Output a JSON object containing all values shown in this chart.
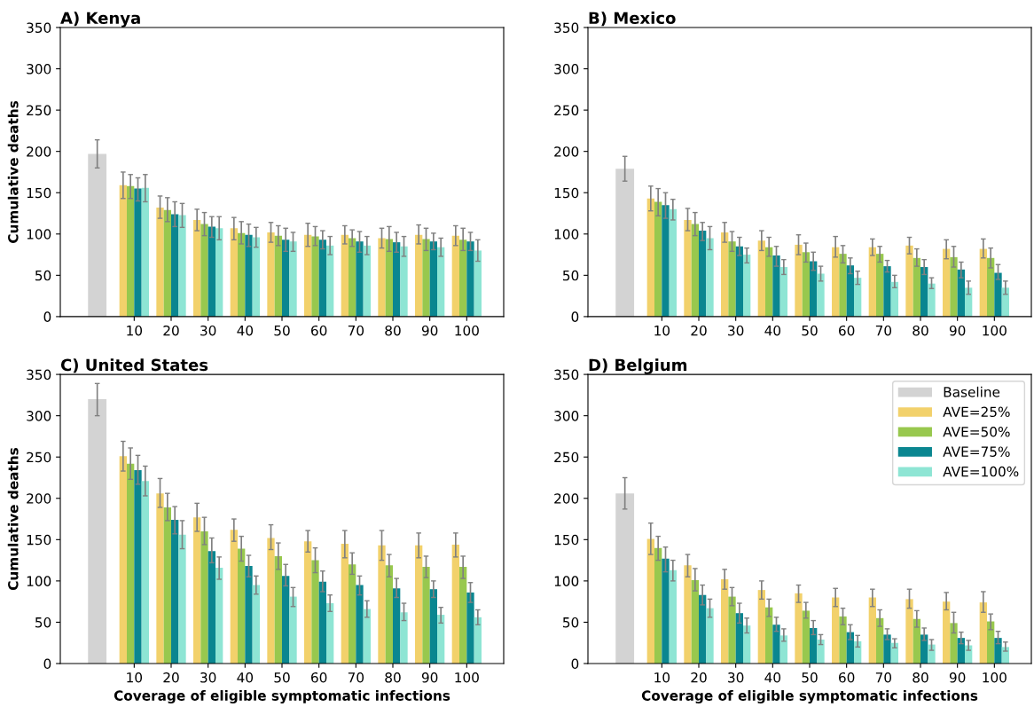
{
  "chart_data": [
    {
      "type": "bar",
      "title": "A) Kenya",
      "ylabel": "Cumulative deaths",
      "categories": [
        null,
        "10",
        "20",
        "30",
        "40",
        "50",
        "60",
        "70",
        "80",
        "90",
        "100"
      ],
      "ylim": [
        0,
        350
      ],
      "yticks": [
        0,
        50,
        100,
        150,
        200,
        250,
        300,
        350
      ],
      "grid": false,
      "legend": false,
      "tick_labels": "xy",
      "series": [
        {
          "color": "#d3d3d3",
          "values": [
            197,
            null,
            null,
            null,
            null,
            null,
            null,
            null,
            null,
            null,
            null
          ],
          "errors": [
            [
              180,
              214
            ],
            null,
            null,
            null,
            null,
            null,
            null,
            null,
            null,
            null,
            null
          ]
        },
        {
          "color": "#f2d16b",
          "values": [
            null,
            159,
            132,
            117,
            107,
            102,
            99,
            99,
            95,
            99,
            98
          ],
          "errors": [
            null,
            [
              143,
              175
            ],
            [
              119,
              146
            ],
            [
              104,
              130
            ],
            [
              93,
              120
            ],
            [
              90,
              114
            ],
            [
              85,
              113
            ],
            [
              88,
              110
            ],
            [
              83,
              107
            ],
            [
              88,
              111
            ],
            [
              86,
              110
            ]
          ]
        },
        {
          "color": "#98c84e",
          "values": [
            null,
            158,
            129,
            112,
            101,
            98,
            97,
            95,
            94,
            94,
            93
          ],
          "errors": [
            null,
            [
              143,
              172
            ],
            [
              115,
              144
            ],
            [
              98,
              126
            ],
            [
              88,
              115
            ],
            [
              86,
              110
            ],
            [
              86,
              109
            ],
            [
              85,
              105
            ],
            [
              79,
              109
            ],
            [
              80,
              107
            ],
            [
              80,
              107
            ]
          ]
        },
        {
          "color": "#0a8690",
          "values": [
            null,
            155,
            124,
            109,
            99,
            93,
            93,
            91,
            90,
            91,
            91
          ],
          "errors": [
            null,
            [
              140,
              168
            ],
            [
              109,
              139
            ],
            [
              96,
              121
            ],
            [
              85,
              112
            ],
            [
              79,
              107
            ],
            [
              82,
              104
            ],
            [
              78,
              103
            ],
            [
              78,
              102
            ],
            [
              81,
              101
            ],
            [
              80,
              102
            ]
          ]
        },
        {
          "color": "#8ee5d4",
          "values": [
            null,
            156,
            123,
            107,
            96,
            91,
            86,
            86,
            85,
            84,
            80
          ],
          "errors": [
            null,
            [
              139,
              172
            ],
            [
              108,
              137
            ],
            [
              93,
              121
            ],
            [
              84,
              108
            ],
            [
              79,
              102
            ],
            [
              75,
              97
            ],
            [
              75,
              97
            ],
            [
              73,
              97
            ],
            [
              73,
              95
            ],
            [
              67,
              93
            ]
          ]
        }
      ]
    },
    {
      "type": "bar",
      "title": "B) Mexico",
      "categories": [
        null,
        "10",
        "20",
        "30",
        "40",
        "50",
        "60",
        "70",
        "80",
        "90",
        "100"
      ],
      "ylim": [
        0,
        350
      ],
      "yticks": [
        0,
        50,
        100,
        150,
        200,
        250,
        300,
        350
      ],
      "grid": false,
      "legend": false,
      "tick_labels": "xy",
      "series": [
        {
          "color": "#d3d3d3",
          "values": [
            179,
            null,
            null,
            null,
            null,
            null,
            null,
            null,
            null,
            null,
            null
          ],
          "errors": [
            [
              164,
              194
            ],
            null,
            null,
            null,
            null,
            null,
            null,
            null,
            null,
            null,
            null
          ]
        },
        {
          "color": "#f2d16b",
          "values": [
            null,
            143,
            117,
            102,
            92,
            87,
            84,
            84,
            86,
            82,
            82
          ],
          "errors": [
            null,
            [
              128,
              158
            ],
            [
              104,
              131
            ],
            [
              90,
              114
            ],
            [
              80,
              104
            ],
            [
              75,
              99
            ],
            [
              72,
              97
            ],
            [
              74,
              94
            ],
            [
              76,
              96
            ],
            [
              70,
              93
            ],
            [
              71,
              94
            ]
          ]
        },
        {
          "color": "#98c84e",
          "values": [
            null,
            139,
            112,
            91,
            84,
            78,
            76,
            76,
            71,
            72,
            71
          ],
          "errors": [
            null,
            [
              122,
              155
            ],
            [
              98,
              126
            ],
            [
              79,
              103
            ],
            [
              73,
              96
            ],
            [
              66,
              89
            ],
            [
              65,
              86
            ],
            [
              66,
              85
            ],
            [
              61,
              82
            ],
            [
              60,
              85
            ],
            [
              59,
              83
            ]
          ]
        },
        {
          "color": "#0a8690",
          "values": [
            null,
            135,
            104,
            85,
            74,
            67,
            62,
            61,
            60,
            57,
            53
          ],
          "errors": [
            null,
            [
              119,
              150
            ],
            [
              92,
              114
            ],
            [
              74,
              96
            ],
            [
              61,
              85
            ],
            [
              56,
              78
            ],
            [
              52,
              71
            ],
            [
              54,
              68
            ],
            [
              51,
              69
            ],
            [
              47,
              66
            ],
            [
              45,
              63
            ]
          ]
        },
        {
          "color": "#8ee5d4",
          "values": [
            null,
            130,
            95,
            75,
            60,
            52,
            47,
            42,
            40,
            35,
            35
          ],
          "errors": [
            null,
            [
              117,
              142
            ],
            [
              81,
              109
            ],
            [
              65,
              83
            ],
            [
              51,
              69
            ],
            [
              43,
              61
            ],
            [
              39,
              55
            ],
            [
              35,
              50
            ],
            [
              34,
              47
            ],
            [
              27,
              43
            ],
            [
              27,
              43
            ]
          ]
        }
      ]
    },
    {
      "type": "bar",
      "title": "C) United States",
      "ylabel": "Cumulative deaths",
      "xlabel": "Coverage of eligible symptomatic infections",
      "categories": [
        null,
        "10",
        "20",
        "30",
        "40",
        "50",
        "60",
        "70",
        "80",
        "90",
        "100"
      ],
      "ylim": [
        0,
        350
      ],
      "yticks": [
        0,
        50,
        100,
        150,
        200,
        250,
        300,
        350
      ],
      "grid": false,
      "legend": false,
      "tick_labels": "xy",
      "series": [
        {
          "color": "#d3d3d3",
          "values": [
            320,
            null,
            null,
            null,
            null,
            null,
            null,
            null,
            null,
            null,
            null
          ],
          "errors": [
            [
              300,
              339
            ],
            null,
            null,
            null,
            null,
            null,
            null,
            null,
            null,
            null,
            null
          ]
        },
        {
          "color": "#f2d16b",
          "values": [
            null,
            251,
            206,
            177,
            162,
            152,
            148,
            145,
            143,
            143,
            144
          ],
          "errors": [
            null,
            [
              233,
              269
            ],
            [
              189,
              224
            ],
            [
              160,
              194
            ],
            [
              148,
              175
            ],
            [
              138,
              168
            ],
            [
              135,
              161
            ],
            [
              128,
              161
            ],
            [
              125,
              161
            ],
            [
              128,
              158
            ],
            [
              129,
              158
            ]
          ]
        },
        {
          "color": "#98c84e",
          "values": [
            null,
            242,
            189,
            160,
            139,
            130,
            125,
            120,
            119,
            117,
            117
          ],
          "errors": [
            null,
            [
              223,
              261
            ],
            [
              173,
              206
            ],
            [
              144,
              177
            ],
            [
              124,
              154
            ],
            [
              114,
              146
            ],
            [
              110,
              140
            ],
            [
              108,
              134
            ],
            [
              105,
              132
            ],
            [
              104,
              130
            ],
            [
              103,
              130
            ]
          ]
        },
        {
          "color": "#0a8690",
          "values": [
            null,
            234,
            174,
            136,
            118,
            106,
            99,
            95,
            91,
            90,
            86
          ],
          "errors": [
            null,
            [
              217,
              252
            ],
            [
              157,
              190
            ],
            [
              122,
              152
            ],
            [
              105,
              131
            ],
            [
              94,
              120
            ],
            [
              87,
              112
            ],
            [
              83,
              106
            ],
            [
              80,
              103
            ],
            [
              80,
              100
            ],
            [
              74,
              98
            ]
          ]
        },
        {
          "color": "#8ee5d4",
          "values": [
            null,
            221,
            156,
            116,
            95,
            81,
            73,
            66,
            62,
            59,
            56
          ],
          "errors": [
            null,
            [
              203,
              239
            ],
            [
              139,
              173
            ],
            [
              102,
              129
            ],
            [
              84,
              106
            ],
            [
              69,
              92
            ],
            [
              63,
              83
            ],
            [
              56,
              76
            ],
            [
              52,
              73
            ],
            [
              49,
              68
            ],
            [
              47,
              65
            ]
          ]
        }
      ]
    },
    {
      "type": "bar",
      "title": "D) Belgium",
      "xlabel": "Coverage of eligible symptomatic infections",
      "categories": [
        null,
        "10",
        "20",
        "30",
        "40",
        "50",
        "60",
        "70",
        "80",
        "90",
        "100"
      ],
      "ylim": [
        0,
        350
      ],
      "yticks": [
        0,
        50,
        100,
        150,
        200,
        250,
        300,
        350
      ],
      "grid": false,
      "legend": "top right",
      "tick_labels": "xy",
      "series": [
        {
          "name": "Baseline",
          "color": "#d3d3d3",
          "values": [
            206,
            null,
            null,
            null,
            null,
            null,
            null,
            null,
            null,
            null,
            null
          ],
          "errors": [
            [
              187,
              225
            ],
            null,
            null,
            null,
            null,
            null,
            null,
            null,
            null,
            null,
            null
          ]
        },
        {
          "name": "AVE=25%",
          "color": "#f2d16b",
          "values": [
            null,
            151,
            119,
            102,
            89,
            85,
            80,
            80,
            78,
            75,
            74
          ],
          "errors": [
            null,
            [
              132,
              170
            ],
            [
              105,
              132
            ],
            [
              90,
              114
            ],
            [
              78,
              100
            ],
            [
              74,
              95
            ],
            [
              69,
              91
            ],
            [
              69,
              90
            ],
            [
              67,
              90
            ],
            [
              65,
              86
            ],
            [
              62,
              87
            ]
          ]
        },
        {
          "name": "AVE=50%",
          "color": "#98c84e",
          "values": [
            null,
            140,
            101,
            81,
            68,
            64,
            57,
            55,
            54,
            49,
            51
          ],
          "errors": [
            null,
            [
              125,
              154
            ],
            [
              88,
              115
            ],
            [
              70,
              92
            ],
            [
              57,
              78
            ],
            [
              55,
              74
            ],
            [
              47,
              67
            ],
            [
              45,
              65
            ],
            [
              44,
              64
            ],
            [
              37,
              62
            ],
            [
              41,
              60
            ]
          ]
        },
        {
          "name": "AVE=75%",
          "color": "#0a8690",
          "values": [
            null,
            127,
            83,
            61,
            47,
            43,
            38,
            35,
            35,
            31,
            31
          ],
          "errors": [
            null,
            [
              111,
              141
            ],
            [
              71,
              95
            ],
            [
              49,
              73
            ],
            [
              39,
              56
            ],
            [
              35,
              52
            ],
            [
              29,
              47
            ],
            [
              29,
              42
            ],
            [
              28,
              43
            ],
            [
              24,
              38
            ],
            [
              24,
              39
            ]
          ]
        },
        {
          "name": "AVE=100%",
          "color": "#8ee5d4",
          "values": [
            null,
            113,
            67,
            46,
            34,
            29,
            27,
            25,
            23,
            22,
            20
          ],
          "errors": [
            null,
            [
              100,
              125
            ],
            [
              56,
              78
            ],
            [
              37,
              55
            ],
            [
              27,
              42
            ],
            [
              23,
              35
            ],
            [
              20,
              34
            ],
            [
              19,
              30
            ],
            [
              16,
              29
            ],
            [
              16,
              28
            ],
            [
              15,
              26
            ]
          ]
        }
      ]
    }
  ]
}
